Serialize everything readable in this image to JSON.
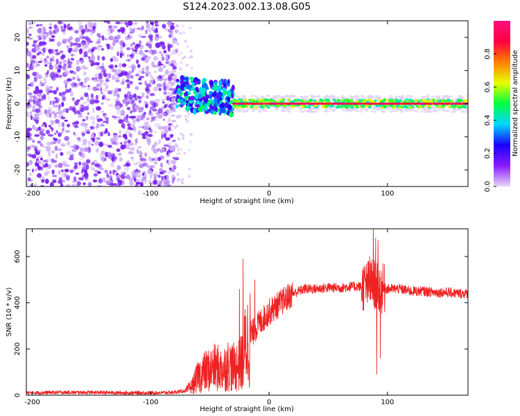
{
  "title": "S124.2023.002.13.08.G05",
  "chart_data": [
    {
      "type": "heatmap",
      "xlabel": "Height of straight line (km)",
      "ylabel": "Frequency (Hz)",
      "xlim": [
        -205,
        168
      ],
      "ylim": [
        -25,
        25
      ],
      "xticks": [
        -200,
        -100,
        0,
        100
      ],
      "yticks": [
        -20,
        -10,
        0,
        10,
        20
      ],
      "grid": false,
      "colorbar": {
        "label": "Normalized spectral amplitude",
        "range": [
          0,
          1
        ],
        "ticks": [
          0.0,
          0.2,
          0.4,
          0.6,
          0.8
        ],
        "colormap": [
          "#e8d8f8",
          "#8a1cff",
          "#1a00ff",
          "#00d8ff",
          "#00ff40",
          "#e8ff00",
          "#ff8000",
          "#ff0040",
          "#ff1080"
        ]
      },
      "features": [
        {
          "name": "noise-region",
          "x_range": [
            -205,
            -78
          ],
          "freq_range": [
            -25,
            25
          ],
          "amplitude": 0.15
        },
        {
          "name": "signal-onset",
          "x_range": [
            -78,
            -30
          ],
          "freq_center": 3,
          "amplitude": 0.4
        },
        {
          "name": "carrier-line",
          "x_range": [
            -30,
            168
          ],
          "freq_center": 0,
          "amplitude": 0.9
        }
      ]
    },
    {
      "type": "line",
      "xlabel": "Height of straight line (km)",
      "ylabel": "SNR (10 * v/v)",
      "xlim": [
        -205,
        168
      ],
      "ylim": [
        0,
        720
      ],
      "xticks": [
        -200,
        -100,
        0,
        100
      ],
      "yticks": [
        0,
        200,
        400,
        600
      ],
      "grid": false,
      "series": [
        {
          "color": "#ee2222",
          "x": [
            -205,
            -180,
            -150,
            -120,
            -100,
            -80,
            -70,
            -65,
            -60,
            -55,
            -50,
            -45,
            -40,
            -35,
            -30,
            -25,
            -22,
            -20,
            -18,
            -15,
            -10,
            -5,
            0,
            5,
            10,
            20,
            30,
            40,
            50,
            60,
            70,
            80,
            85,
            88,
            90,
            92,
            95,
            100,
            110,
            120,
            130,
            140,
            150,
            160,
            168
          ],
          "y": [
            10,
            12,
            12,
            10,
            10,
            12,
            20,
            40,
            80,
            100,
            110,
            120,
            110,
            130,
            120,
            130,
            150,
            220,
            240,
            260,
            300,
            330,
            360,
            380,
            400,
            440,
            460,
            460,
            465,
            465,
            470,
            470,
            480,
            490,
            470,
            460,
            460,
            460,
            460,
            450,
            450,
            445,
            445,
            440,
            440
          ],
          "spikes": [
            {
              "x": -22,
              "y": 590
            },
            {
              "x": -12,
              "y": 500
            },
            {
              "x": -25,
              "y": 460
            },
            {
              "x": 85,
              "y": 600
            },
            {
              "x": 88,
              "y": 720
            },
            {
              "x": 90,
              "y": 680
            },
            {
              "x": 91,
              "y": 90
            },
            {
              "x": 94,
              "y": 160
            },
            {
              "x": 92,
              "y": 670
            }
          ]
        }
      ]
    }
  ]
}
